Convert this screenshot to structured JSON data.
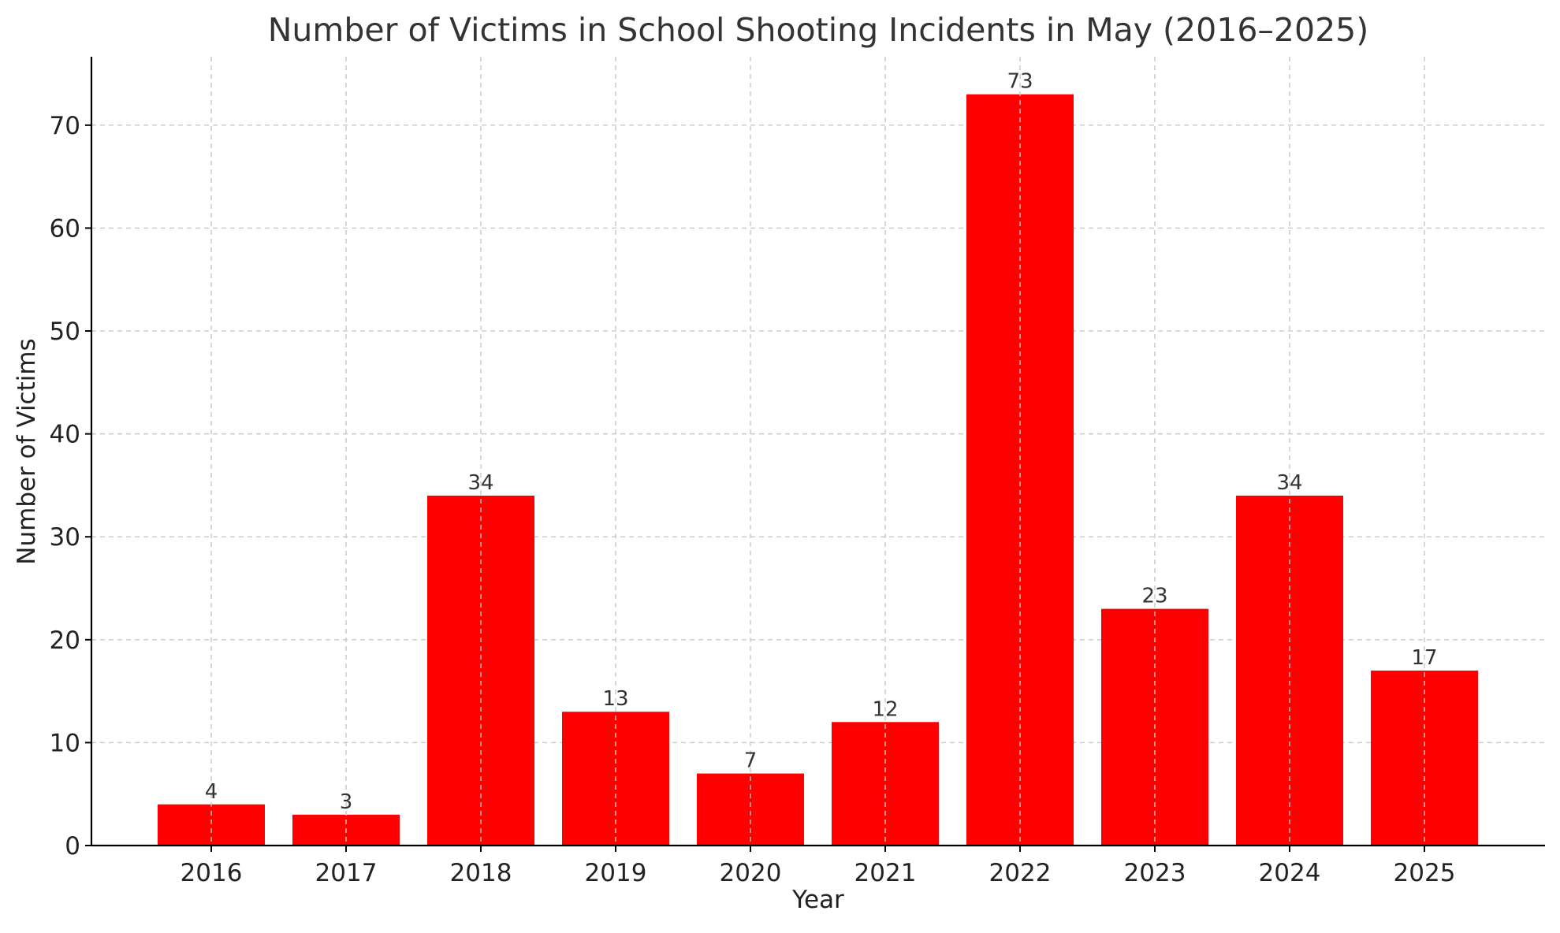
{
  "chart_data": {
    "type": "bar",
    "title": "Number of Victims in School Shooting Incidents in May (2016–2025)",
    "xlabel": "Year",
    "ylabel": "Number of Victims",
    "categories": [
      "2016",
      "2017",
      "2018",
      "2019",
      "2020",
      "2021",
      "2022",
      "2023",
      "2024",
      "2025"
    ],
    "values": [
      4,
      3,
      34,
      13,
      7,
      12,
      73,
      23,
      34,
      17
    ],
    "data_labels": [
      "4",
      "3",
      "34",
      "13",
      "7",
      "12",
      "73",
      "23",
      "34",
      "17"
    ],
    "ylim": [
      0,
      76.65
    ],
    "yticks": [
      0,
      10,
      20,
      30,
      40,
      50,
      60,
      70
    ],
    "ytick_labels": [
      "0",
      "10",
      "20",
      "30",
      "40",
      "50",
      "60",
      "70"
    ],
    "grid": true,
    "legend": "none",
    "bar_color": "#ff0000"
  }
}
